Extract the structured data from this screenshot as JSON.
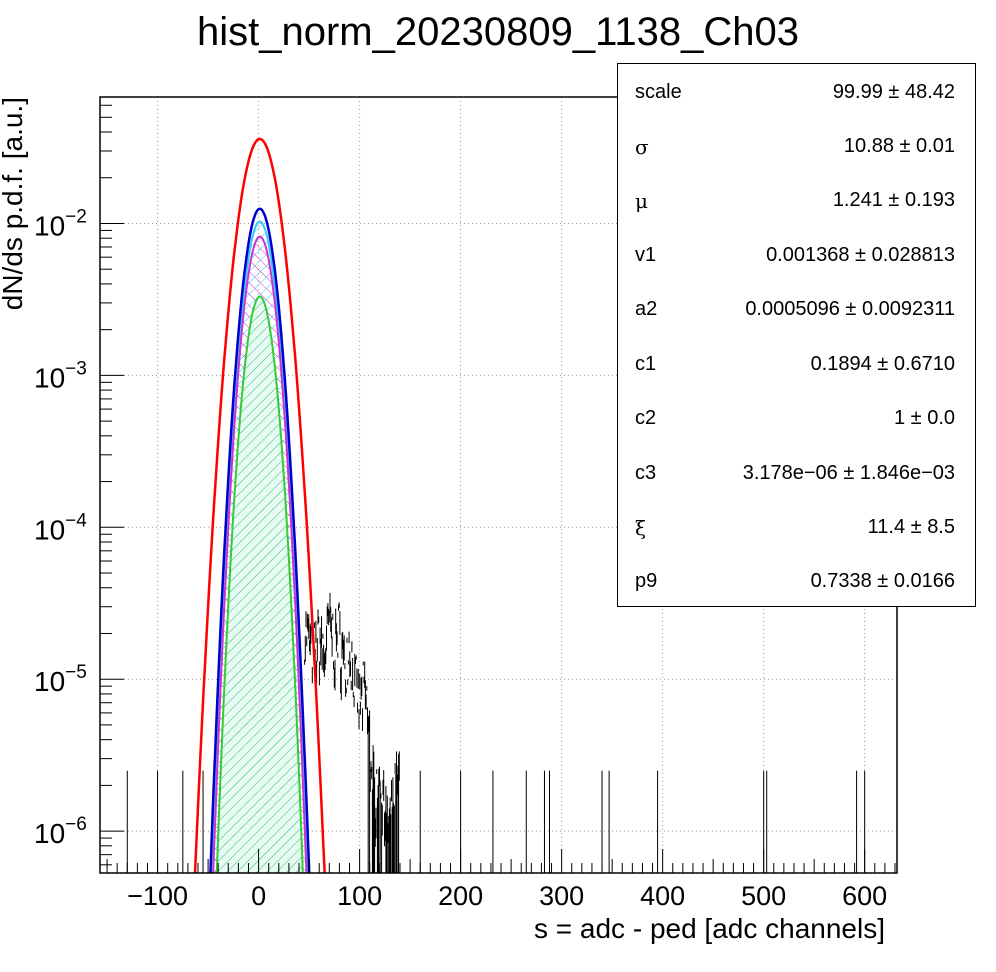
{
  "chart_data": {
    "type": "line",
    "title": "hist_norm_20230809_1138_Ch03",
    "xlabel": "s = adc - ped [adc channels]",
    "ylabel": "dN/ds p.d.f. [a.u.]",
    "xlim": [
      -157,
      632
    ],
    "ylim": [
      5.3e-07,
      0.068
    ],
    "y_scale": "log",
    "grid": true,
    "x_ticks": [
      {
        "value": -100,
        "label": "−100"
      },
      {
        "value": 0,
        "label": "0"
      },
      {
        "value": 100,
        "label": "100"
      },
      {
        "value": 200,
        "label": "200"
      },
      {
        "value": 300,
        "label": "300"
      },
      {
        "value": 400,
        "label": "400"
      },
      {
        "value": 500,
        "label": "500"
      },
      {
        "value": 600,
        "label": "600"
      }
    ],
    "y_ticks": [
      {
        "value": 0.01,
        "base": "10",
        "exp": "−2"
      },
      {
        "value": 0.001,
        "base": "10",
        "exp": "−3"
      },
      {
        "value": 0.0001,
        "base": "10",
        "exp": "−4"
      },
      {
        "value": 1e-05,
        "base": "10",
        "exp": "−5"
      },
      {
        "value": 1e-06,
        "base": "10",
        "exp": "−6"
      }
    ],
    "fit_curves": [
      {
        "color": "#ff0000",
        "peak": 0.036,
        "mu": 1.2,
        "sigma": 13.6,
        "fill": "none"
      },
      {
        "color": "#0000cc",
        "peak": 0.0125,
        "mu": 1.2,
        "sigma": 10.9,
        "fill": "none"
      },
      {
        "color": "#33ccff",
        "peak": 0.0103,
        "mu": 1.2,
        "sigma": 10.6,
        "fill": "cyan-hatch"
      },
      {
        "color": "#cc33cc",
        "peak": 0.0082,
        "mu": 1.2,
        "sigma": 10.5,
        "fill": "magenta-hatch"
      },
      {
        "color": "#33cc33",
        "peak": 0.0033,
        "mu": 1.2,
        "sigma": 10.2,
        "fill": "green-hatch"
      }
    ],
    "histogram_tail": [
      {
        "x": 45,
        "y": 2.5e-05
      },
      {
        "x": 55,
        "y": 1.7e-05
      },
      {
        "x": 60,
        "y": 2.2e-05
      },
      {
        "x": 65,
        "y": 1.6e-05
      },
      {
        "x": 70,
        "y": 2.8e-05
      },
      {
        "x": 75,
        "y": 1.9e-05
      },
      {
        "x": 80,
        "y": 2.4e-05
      },
      {
        "x": 85,
        "y": 1.4e-05
      },
      {
        "x": 90,
        "y": 2e-05
      },
      {
        "x": 95,
        "y": 1.1e-05
      },
      {
        "x": 100,
        "y": 8e-06
      },
      {
        "x": 105,
        "y": 9.5e-06
      },
      {
        "x": 110,
        "y": 5e-06
      },
      {
        "x": 115,
        "y": 2e-06
      },
      {
        "x": 120,
        "y": 3e-06
      },
      {
        "x": 125,
        "y": 1.5e-06
      },
      {
        "x": 130,
        "y": 1.2e-06
      },
      {
        "x": 135,
        "y": 2.5e-06
      },
      {
        "x": 140,
        "y": 2.5e-06
      }
    ],
    "isolated_entries_x": [
      -130,
      -100,
      -75,
      -55,
      160,
      200,
      232,
      265,
      283,
      288,
      340,
      347,
      395,
      500,
      503,
      592,
      600
    ]
  },
  "stats_box": {
    "rows": [
      {
        "name": "scale",
        "value": "99.99 ± 48.42"
      },
      {
        "name": "σ",
        "value": "10.88 ± 0.01",
        "greek": true
      },
      {
        "name": "μ",
        "value": "1.241 ± 0.193",
        "greek": true
      },
      {
        "name": "v1",
        "value": "0.001368  ± 0.028813"
      },
      {
        "name": "a2",
        "value": "0.0005096  ± 0.0092311"
      },
      {
        "name": "c1",
        "value": "0.1894  ± 0.6710"
      },
      {
        "name": "c2",
        "value": "1 ± 0.0"
      },
      {
        "name": "c3",
        "value": "3.178e−06 ± 1.846e−03"
      },
      {
        "name": "ξ",
        "value": "11.4  ± 8.5",
        "greek": true
      },
      {
        "name": "p9",
        "value": "0.7338  ± 0.0166"
      }
    ]
  }
}
